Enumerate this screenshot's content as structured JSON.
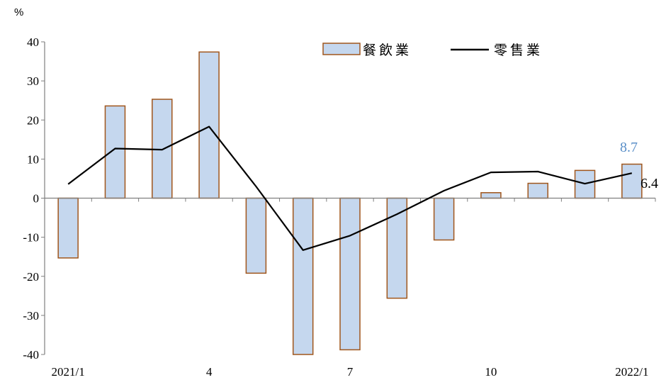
{
  "colors": {
    "bar_fill": "#c5d7ee",
    "bar_stroke": "#a0561c",
    "line": "#000000",
    "axis": "#7f7f7f",
    "bar_label": "#5a8fc8",
    "line_label": "#000000"
  },
  "chart_data": {
    "type": "bar",
    "unit_label": "%",
    "ylim": [
      -40,
      40
    ],
    "y_ticks": [
      40,
      30,
      20,
      10,
      0,
      -10,
      -20,
      -30,
      -40
    ],
    "x_tick_labels": [
      {
        "index": 0,
        "label": "2021/1"
      },
      {
        "index": 3,
        "label": "4"
      },
      {
        "index": 6,
        "label": "7"
      },
      {
        "index": 9,
        "label": "10"
      },
      {
        "index": 12,
        "label": "2022/1"
      }
    ],
    "categories": [
      "2021/1",
      "2021/2",
      "2021/3",
      "2021/4",
      "2021/5",
      "2021/6",
      "2021/7",
      "2021/8",
      "2021/9",
      "2021/10",
      "2021/11",
      "2021/12",
      "2022/1"
    ],
    "series": [
      {
        "name": "餐飲業",
        "kind": "bar",
        "values": [
          -15.3,
          23.6,
          25.3,
          37.4,
          -19.2,
          -40.0,
          -38.8,
          -25.6,
          -10.7,
          1.4,
          3.8,
          7.1,
          8.7
        ]
      },
      {
        "name": "零售業",
        "kind": "line",
        "values": [
          3.6,
          12.7,
          12.4,
          18.3,
          3.0,
          -13.3,
          -9.6,
          -4.1,
          1.9,
          6.6,
          6.8,
          3.7,
          6.4
        ]
      }
    ],
    "annotations": {
      "bar_last": "8.7",
      "line_last": "6.4"
    },
    "legend": {
      "position": "top-right",
      "bar_label": "餐飲業",
      "line_label": "零售業"
    },
    "grid": false
  }
}
